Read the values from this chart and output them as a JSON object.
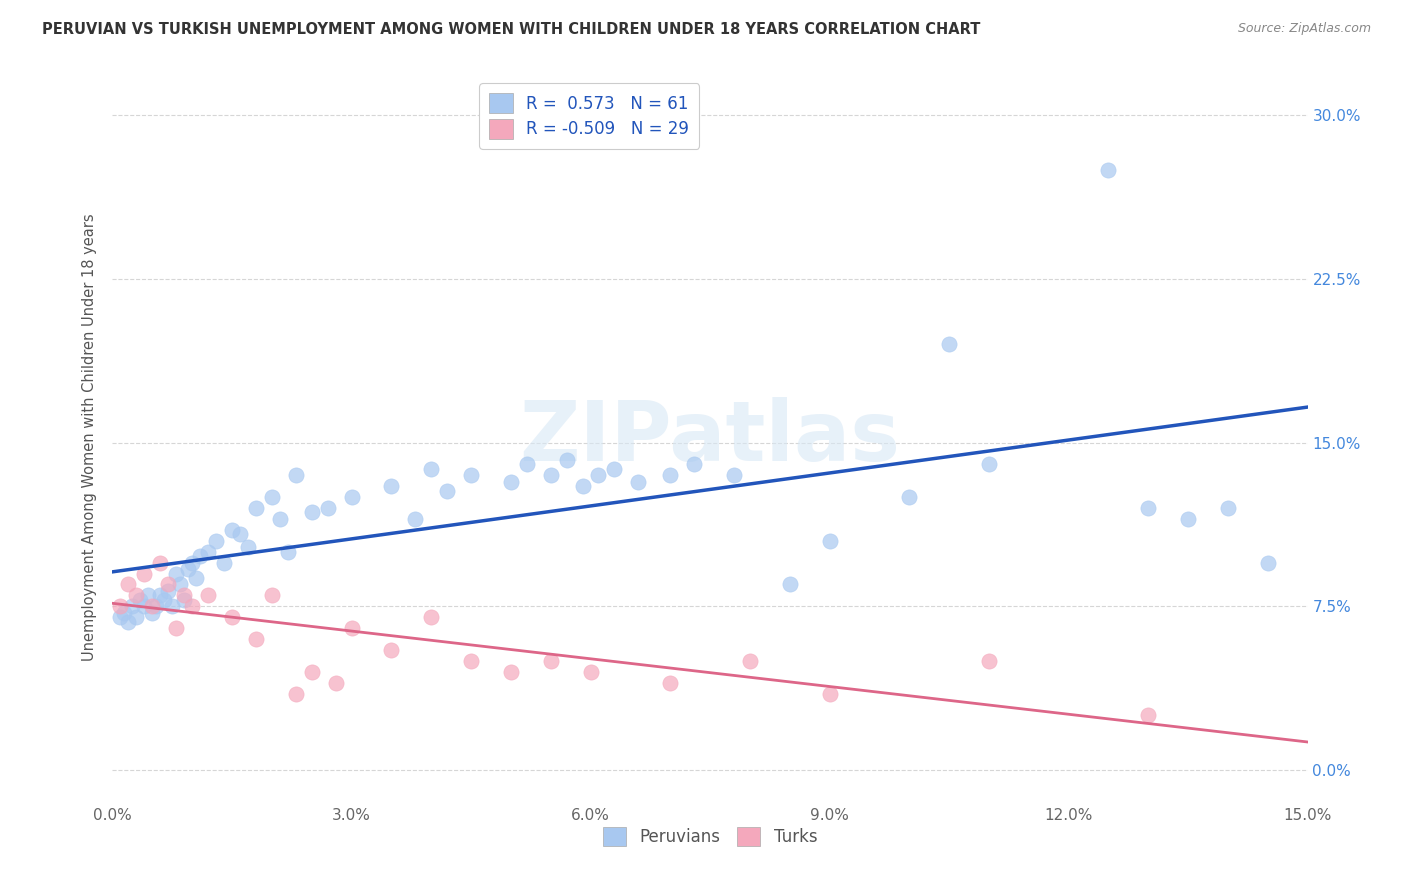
{
  "title": "PERUVIAN VS TURKISH UNEMPLOYMENT AMONG WOMEN WITH CHILDREN UNDER 18 YEARS CORRELATION CHART",
  "source": "Source: ZipAtlas.com",
  "ylabel": "Unemployment Among Women with Children Under 18 years",
  "xlim": [
    0.0,
    15.0
  ],
  "ylim": [
    -1.5,
    32.0
  ],
  "ytick_vals": [
    0.0,
    7.5,
    15.0,
    22.5,
    30.0
  ],
  "xtick_vals": [
    0.0,
    3.0,
    6.0,
    9.0,
    12.0,
    15.0
  ],
  "peruvian_color": "#a8c8f0",
  "turkish_color": "#f4a8bc",
  "peruvian_line_color": "#2255bb",
  "turkish_line_color": "#dd6688",
  "legend_R_peru": "0.573",
  "legend_N_peru": "61",
  "legend_R_turk": "-0.509",
  "legend_N_turk": "29",
  "peruvian_x": [
    0.1,
    0.15,
    0.2,
    0.25,
    0.3,
    0.35,
    0.4,
    0.45,
    0.5,
    0.55,
    0.6,
    0.65,
    0.7,
    0.75,
    0.8,
    0.85,
    0.9,
    0.95,
    1.0,
    1.05,
    1.1,
    1.2,
    1.3,
    1.4,
    1.5,
    1.6,
    1.7,
    1.8,
    2.0,
    2.1,
    2.2,
    2.3,
    2.5,
    2.7,
    3.0,
    3.5,
    3.8,
    4.0,
    4.2,
    4.5,
    5.0,
    5.2,
    5.5,
    5.7,
    5.9,
    6.1,
    6.3,
    6.6,
    7.0,
    7.3,
    7.8,
    8.5,
    9.0,
    10.0,
    10.5,
    11.0,
    12.5,
    13.0,
    13.5,
    14.0,
    14.5
  ],
  "peruvian_y": [
    7.0,
    7.2,
    6.8,
    7.5,
    7.0,
    7.8,
    7.5,
    8.0,
    7.2,
    7.5,
    8.0,
    7.8,
    8.2,
    7.5,
    9.0,
    8.5,
    7.8,
    9.2,
    9.5,
    8.8,
    9.8,
    10.0,
    10.5,
    9.5,
    11.0,
    10.8,
    10.2,
    12.0,
    12.5,
    11.5,
    10.0,
    13.5,
    11.8,
    12.0,
    12.5,
    13.0,
    11.5,
    13.8,
    12.8,
    13.5,
    13.2,
    14.0,
    13.5,
    14.2,
    13.0,
    13.5,
    13.8,
    13.2,
    13.5,
    14.0,
    13.5,
    8.5,
    10.5,
    12.5,
    19.5,
    14.0,
    27.5,
    12.0,
    11.5,
    12.0,
    9.5
  ],
  "turkish_x": [
    0.1,
    0.2,
    0.3,
    0.4,
    0.5,
    0.6,
    0.7,
    0.8,
    0.9,
    1.0,
    1.2,
    1.5,
    1.8,
    2.0,
    2.3,
    2.5,
    2.8,
    3.0,
    3.5,
    4.0,
    4.5,
    5.0,
    5.5,
    6.0,
    7.0,
    8.0,
    9.0,
    11.0,
    13.0
  ],
  "turkish_y": [
    7.5,
    8.5,
    8.0,
    9.0,
    7.5,
    9.5,
    8.5,
    6.5,
    8.0,
    7.5,
    8.0,
    7.0,
    6.0,
    8.0,
    3.5,
    4.5,
    4.0,
    6.5,
    5.5,
    7.0,
    5.0,
    4.5,
    5.0,
    4.5,
    4.0,
    5.0,
    3.5,
    5.0,
    2.5
  ],
  "background_color": "#ffffff",
  "grid_color": "#cccccc",
  "right_tick_color": "#4488dd",
  "watermark_text": "ZIPatlas"
}
